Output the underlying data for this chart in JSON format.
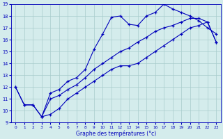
{
  "xlabel": "Graphe des températures (°c)",
  "background_color": "#d4ecec",
  "grid_color": "#a8cccc",
  "line_color": "#0000bb",
  "xlim": [
    -0.5,
    23.5
  ],
  "ylim": [
    9,
    19
  ],
  "xticks": [
    0,
    1,
    2,
    3,
    4,
    5,
    6,
    7,
    8,
    9,
    10,
    11,
    12,
    13,
    14,
    15,
    16,
    17,
    18,
    19,
    20,
    21,
    22,
    23
  ],
  "yticks": [
    9,
    10,
    11,
    12,
    13,
    14,
    15,
    16,
    17,
    18,
    19
  ],
  "line1_x": [
    0,
    1,
    2,
    3,
    4,
    5,
    6,
    7,
    8,
    9,
    10,
    11,
    12,
    13,
    14,
    15,
    16,
    17,
    18,
    19,
    20,
    21,
    22,
    23
  ],
  "line1_y": [
    12,
    10.5,
    10.5,
    9.5,
    11.5,
    11.8,
    12.5,
    12.8,
    13.5,
    15.2,
    16.5,
    17.9,
    18.0,
    17.3,
    17.2,
    18.0,
    18.3,
    19.0,
    18.6,
    18.3,
    18.0,
    17.6,
    17.0,
    16.5
  ],
  "line2_x": [
    3,
    4,
    5,
    6,
    7,
    8,
    9,
    10,
    11,
    12,
    13,
    14,
    15,
    16,
    17,
    18,
    19,
    20,
    21,
    22,
    23
  ],
  "line2_y": [
    9.5,
    9.7,
    10.2,
    11.0,
    11.5,
    12.0,
    12.5,
    13.0,
    13.5,
    13.8,
    13.8,
    14.0,
    14.5,
    15.0,
    15.5,
    16.0,
    16.5,
    17.0,
    17.2,
    17.5,
    15.8
  ],
  "line3_x": [
    0,
    1,
    2,
    3,
    4,
    5,
    6,
    7,
    8,
    9,
    10,
    11,
    12,
    13,
    14,
    15,
    16,
    17,
    18,
    19,
    20,
    21,
    22,
    23
  ],
  "line3_y": [
    12,
    10.5,
    10.5,
    9.5,
    11.0,
    11.3,
    11.8,
    12.2,
    12.8,
    13.5,
    14.0,
    14.5,
    15.0,
    15.3,
    15.8,
    16.2,
    16.7,
    17.0,
    17.2,
    17.5,
    17.8,
    17.8,
    17.5,
    15.8
  ]
}
